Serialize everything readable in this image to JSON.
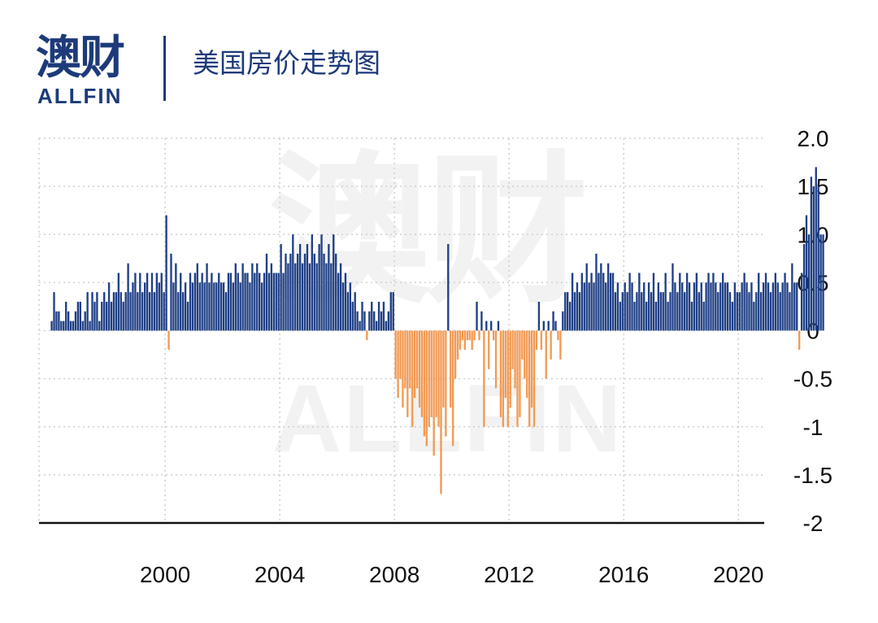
{
  "brand": {
    "name_cn": "澳财",
    "name_en": "ALLFIN"
  },
  "title": "美国房价走势图",
  "colors": {
    "positive": "#1f3f85",
    "negative": "#f29a54",
    "grid": "#cfcfcf",
    "axis": "#111111",
    "brand": "#1d3a7a"
  },
  "chart_data": {
    "type": "bar",
    "title": "美国房价走势图",
    "xlabel": "",
    "ylabel": "",
    "ylim": [
      -2,
      2
    ],
    "grid": true,
    "y_ticks": [
      "2.0",
      "1.5",
      "1.0",
      "0.5",
      "0",
      "-0.5",
      "-1",
      "-1.5",
      "-2"
    ],
    "y_tick_values": [
      2,
      1.5,
      1,
      0.5,
      0,
      -0.5,
      -1,
      -1.5,
      -2
    ],
    "x_ticks": [
      "2000",
      "2004",
      "2008",
      "2012",
      "2016",
      "2020"
    ],
    "x_tick_values": [
      2000,
      2004,
      2008,
      2012,
      2016,
      2020
    ],
    "x_range": [
      1995.6,
      2020.9
    ],
    "frequency": "monthly",
    "start": 1996.0,
    "values": [
      0.1,
      0.4,
      0.2,
      0.2,
      0.1,
      0.1,
      0.3,
      0.2,
      0.1,
      0.1,
      0.2,
      0.3,
      0.3,
      0.1,
      0.2,
      0.4,
      0.1,
      0.4,
      0.3,
      0.4,
      0.1,
      0.3,
      0.4,
      0.3,
      0.5,
      0.3,
      0.4,
      0.4,
      0.6,
      0.4,
      0.3,
      0.4,
      0.7,
      0.4,
      0.5,
      0.6,
      0.4,
      0.6,
      0.4,
      0.5,
      0.6,
      0.4,
      0.6,
      0.4,
      0.6,
      0.5,
      0.6,
      0.4,
      1.2,
      -0.2,
      0.8,
      0.5,
      0.7,
      0.4,
      0.6,
      0.4,
      0.5,
      0.3,
      0.6,
      0.5,
      0.6,
      0.7,
      0.5,
      0.6,
      0.5,
      0.7,
      0.5,
      0.6,
      0.5,
      0.5,
      0.6,
      0.5,
      0.5,
      0.4,
      0.6,
      0.6,
      0.5,
      0.7,
      0.6,
      0.5,
      0.7,
      0.6,
      0.6,
      0.5,
      0.7,
      0.6,
      0.7,
      0.6,
      0.5,
      0.6,
      0.8,
      0.6,
      0.7,
      0.6,
      0.6,
      0.6,
      0.9,
      0.6,
      0.8,
      0.7,
      0.8,
      1.0,
      0.7,
      0.8,
      0.9,
      0.7,
      0.8,
      0.9,
      0.7,
      1.0,
      0.8,
      0.7,
      0.9,
      1.0,
      0.8,
      0.7,
      0.9,
      0.7,
      1.0,
      0.8,
      0.6,
      0.7,
      0.5,
      0.6,
      0.4,
      0.5,
      0.3,
      0.4,
      0.2,
      0.1,
      0.3,
      0.2,
      -0.1,
      0.2,
      0.3,
      0.2,
      0.1,
      0.3,
      0.2,
      0.3,
      0.1,
      0.2,
      0.4,
      0.4,
      -0.5,
      -0.7,
      -0.5,
      -0.8,
      -0.6,
      -0.9,
      -0.6,
      -1.0,
      -0.7,
      -0.6,
      -0.8,
      -0.9,
      -1.1,
      -1.2,
      -1.0,
      -0.9,
      -1.3,
      -0.9,
      -1.0,
      -1.7,
      -0.8,
      -1.1,
      0.9,
      -0.8,
      -1.2,
      -0.5,
      -0.3,
      -0.2,
      -0.1,
      -0.2,
      -0.1,
      -0.1,
      -0.2,
      -0.1,
      0.3,
      -0.1,
      0.2,
      -1.0,
      0.1,
      -0.4,
      0.1,
      -0.1,
      -0.6,
      0.1,
      -0.9,
      -1.0,
      -0.7,
      -1.0,
      -0.8,
      -0.4,
      -0.6,
      -1.0,
      -0.9,
      -0.3,
      -0.5,
      -0.7,
      -1.0,
      -0.8,
      -1.0,
      -0.2,
      0.3,
      -0.2,
      0.1,
      -0.5,
      0.1,
      -0.3,
      0.2,
      0.1,
      -0.1,
      -0.3,
      0.2,
      0.4,
      0.4,
      0.3,
      0.6,
      0.4,
      0.5,
      0.4,
      0.6,
      0.5,
      0.7,
      0.5,
      0.6,
      0.5,
      0.8,
      0.6,
      0.7,
      0.6,
      0.5,
      0.7,
      0.6,
      0.6,
      0.4,
      0.5,
      0.3,
      0.4,
      0.5,
      0.4,
      0.6,
      0.5,
      0.3,
      0.4,
      0.6,
      0.4,
      0.5,
      0.3,
      0.5,
      0.4,
      0.6,
      0.3,
      0.5,
      0.4,
      0.4,
      0.6,
      0.3,
      0.4,
      0.7,
      0.5,
      0.4,
      0.6,
      0.5,
      0.4,
      0.6,
      0.5,
      0.3,
      0.5,
      0.6,
      0.4,
      0.5,
      0.3,
      0.5,
      0.6,
      0.5,
      0.6,
      0.5,
      0.4,
      0.5,
      0.6,
      0.5,
      0.5,
      0.4,
      0.3,
      0.5,
      0.4,
      0.4,
      0.5,
      0.6,
      0.5,
      0.4,
      0.5,
      0.3,
      0.4,
      0.6,
      0.4,
      0.5,
      0.6,
      0.5,
      0.4,
      0.5,
      0.6,
      0.5,
      0.4,
      0.5,
      0.6,
      0.5,
      0.4,
      0.7,
      0.5,
      0.5,
      -0.2,
      0.6,
      0.9,
      1.2,
      1.0,
      1.6,
      1.5,
      1.7,
      1.5,
      1.0,
      1.0
    ]
  }
}
